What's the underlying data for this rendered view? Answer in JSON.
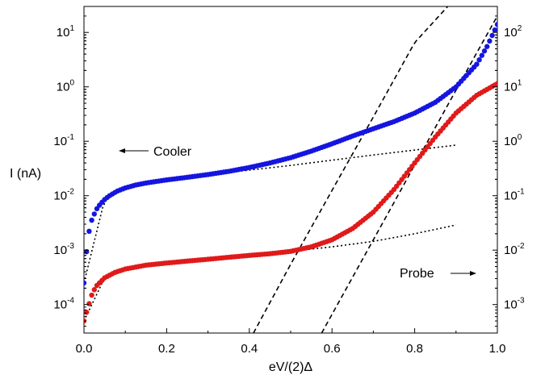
{
  "chart_data": {
    "type": "scatter",
    "xlabel": "eV/(2)Δ",
    "ylabel": "I (nA)",
    "xlim": [
      0.0,
      1.0
    ],
    "xticks": [
      "0.0",
      "0.2",
      "0.4",
      "0.6",
      "0.8",
      "1.0"
    ],
    "ylim_left": [
      3e-05,
      30
    ],
    "yscale_left": "log",
    "yticks_left": [
      {
        "base": "10",
        "exp": "-4"
      },
      {
        "base": "10",
        "exp": "-3"
      },
      {
        "base": "10",
        "exp": "-2"
      },
      {
        "base": "10",
        "exp": "-1"
      },
      {
        "base": "10",
        "exp": "0"
      },
      {
        "base": "10",
        "exp": "1"
      }
    ],
    "ylim_right": [
      0.0003,
      300
    ],
    "yscale_right": "log",
    "yticks_right": [
      {
        "base": "10",
        "exp": "-3"
      },
      {
        "base": "10",
        "exp": "-2"
      },
      {
        "base": "10",
        "exp": "-1"
      },
      {
        "base": "10",
        "exp": "0"
      },
      {
        "base": "10",
        "exp": "1"
      },
      {
        "base": "10",
        "exp": "2"
      }
    ],
    "grid": false,
    "annotations": [
      {
        "text": "Cooler",
        "arrow": "left",
        "axis": "left"
      },
      {
        "text": "Probe",
        "arrow": "right",
        "axis": "right"
      }
    ],
    "series": [
      {
        "color": "#1515e0",
        "marker": "dot",
        "axis": "left",
        "points": [
          [
            0.0,
            0.00025
          ],
          [
            0.003,
            0.00045
          ],
          [
            0.006,
            0.0009
          ],
          [
            0.01,
            0.0017
          ],
          [
            0.015,
            0.0029
          ],
          [
            0.02,
            0.0038
          ],
          [
            0.03,
            0.0056
          ],
          [
            0.04,
            0.0071
          ],
          [
            0.05,
            0.0085
          ],
          [
            0.06,
            0.0098
          ],
          [
            0.08,
            0.0121
          ],
          [
            0.1,
            0.0139
          ],
          [
            0.125,
            0.0157
          ],
          [
            0.15,
            0.0171
          ],
          [
            0.175,
            0.0183
          ],
          [
            0.2,
            0.0195
          ],
          [
            0.25,
            0.0218
          ],
          [
            0.3,
            0.0245
          ],
          [
            0.35,
            0.028
          ],
          [
            0.4,
            0.033
          ],
          [
            0.45,
            0.04
          ],
          [
            0.5,
            0.05
          ],
          [
            0.55,
            0.066
          ],
          [
            0.6,
            0.09
          ],
          [
            0.65,
            0.125
          ],
          [
            0.7,
            0.17
          ],
          [
            0.75,
            0.23
          ],
          [
            0.8,
            0.33
          ],
          [
            0.85,
            0.52
          ],
          [
            0.9,
            1.0
          ],
          [
            0.95,
            2.6
          ],
          [
            0.975,
            5.5
          ],
          [
            1.0,
            14
          ]
        ]
      },
      {
        "color": "#e01a1a",
        "marker": "dot",
        "axis": "right",
        "points": [
          [
            0.0,
            0.0005
          ],
          [
            0.01,
            0.0009
          ],
          [
            0.02,
            0.0016
          ],
          [
            0.03,
            0.0022
          ],
          [
            0.05,
            0.0031
          ],
          [
            0.075,
            0.0039
          ],
          [
            0.1,
            0.0045
          ],
          [
            0.15,
            0.0053
          ],
          [
            0.2,
            0.0058
          ],
          [
            0.25,
            0.0063
          ],
          [
            0.3,
            0.0068
          ],
          [
            0.35,
            0.0074
          ],
          [
            0.4,
            0.008
          ],
          [
            0.45,
            0.0086
          ],
          [
            0.5,
            0.0095
          ],
          [
            0.55,
            0.0115
          ],
          [
            0.6,
            0.0155
          ],
          [
            0.65,
            0.025
          ],
          [
            0.7,
            0.05
          ],
          [
            0.75,
            0.13
          ],
          [
            0.8,
            0.4
          ],
          [
            0.85,
            1.2
          ],
          [
            0.9,
            3.3
          ],
          [
            0.95,
            7.0
          ],
          [
            1.0,
            11.5
          ]
        ]
      }
    ],
    "fits": [
      {
        "style": "dotted",
        "axis": "left",
        "points": [
          [
            0.0,
            0.00025
          ],
          [
            0.05,
            0.0085
          ],
          [
            0.1,
            0.0139
          ],
          [
            0.2,
            0.0195
          ],
          [
            0.3,
            0.0243
          ],
          [
            0.4,
            0.0295
          ],
          [
            0.5,
            0.036
          ],
          [
            0.6,
            0.045
          ],
          [
            0.7,
            0.056
          ],
          [
            0.8,
            0.069
          ],
          [
            0.9,
            0.085
          ]
        ]
      },
      {
        "style": "dotted",
        "axis": "right",
        "points": [
          [
            0.0,
            0.0005
          ],
          [
            0.05,
            0.0031
          ],
          [
            0.1,
            0.0045
          ],
          [
            0.2,
            0.0058
          ],
          [
            0.3,
            0.0068
          ],
          [
            0.4,
            0.008
          ],
          [
            0.5,
            0.0095
          ],
          [
            0.6,
            0.0115
          ],
          [
            0.7,
            0.0145
          ],
          [
            0.8,
            0.02
          ],
          [
            0.9,
            0.029
          ]
        ]
      },
      {
        "style": "dotted",
        "axis": "right",
        "points": [
          [
            0.7,
            0.05
          ],
          [
            0.75,
            0.13
          ],
          [
            0.8,
            0.4
          ],
          [
            0.85,
            1.2
          ],
          [
            0.9,
            3.3
          ]
        ]
      },
      {
        "style": "dashed",
        "axis": "left",
        "points": [
          [
            0.41,
            3e-05
          ],
          [
            0.5,
            0.00055
          ],
          [
            0.6,
            0.0125
          ],
          [
            0.7,
            0.28
          ],
          [
            0.8,
            6.5
          ],
          [
            0.88,
            30
          ]
        ]
      },
      {
        "style": "dashed",
        "axis": "right",
        "points": [
          [
            0.575,
            0.0003
          ],
          [
            0.65,
            0.0032
          ],
          [
            0.75,
            0.075
          ],
          [
            0.85,
            1.8
          ],
          [
            0.95,
            42
          ],
          [
            1.0,
            200
          ]
        ]
      }
    ]
  }
}
